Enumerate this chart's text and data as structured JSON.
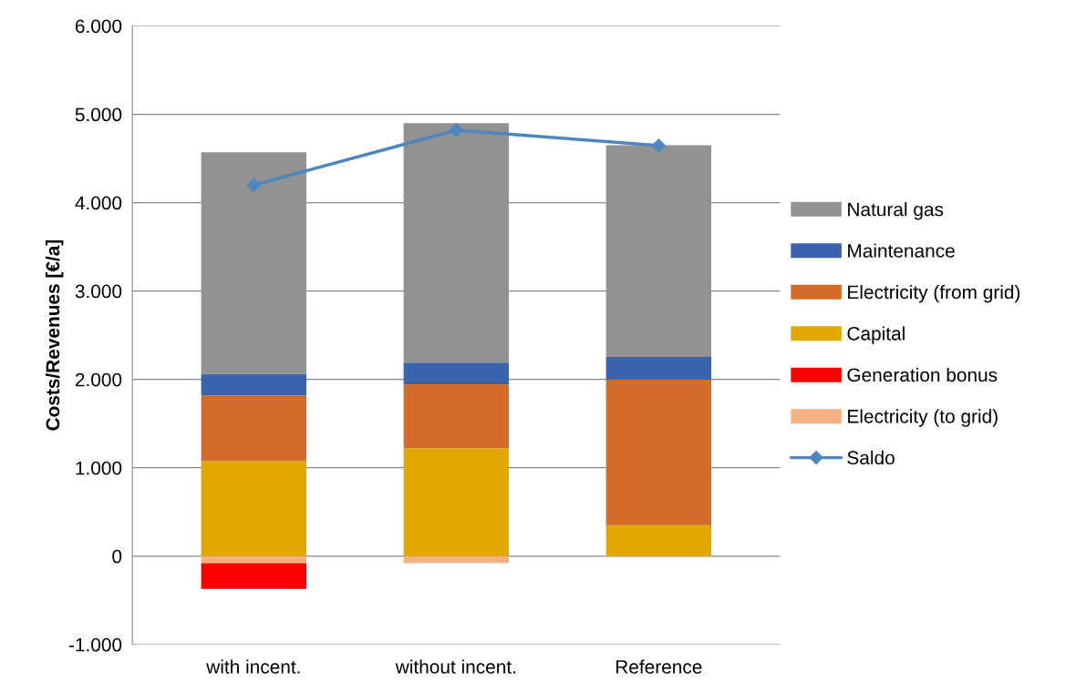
{
  "chart_data": {
    "type": "bar",
    "stacked": true,
    "ylabel": "Costs/Revenues [€/a]",
    "categories": [
      "with incent.",
      "without incent.",
      "Reference"
    ],
    "series": [
      {
        "name": "Electricity (to grid)",
        "color": "#f4b183",
        "values": [
          -80,
          -80,
          0
        ]
      },
      {
        "name": "Generation bonus",
        "color": "#ff0000",
        "values": [
          -290,
          0,
          0
        ]
      },
      {
        "name": "Capital",
        "color": "#e0a800",
        "values": [
          1075,
          1220,
          350
        ]
      },
      {
        "name": "Electricity (from grid)",
        "color": "#d36b2a",
        "values": [
          745,
          725,
          1650
        ]
      },
      {
        "name": "Maintenance",
        "color": "#3a64ad",
        "values": [
          240,
          245,
          255
        ]
      },
      {
        "name": "Natural gas",
        "color": "#929292",
        "values": [
          2510,
          2710,
          2395
        ]
      },
      {
        "name": "Saldo",
        "type": "line",
        "color": "#4f86c0",
        "marker": "diamond",
        "values": [
          4200,
          4820,
          4645
        ]
      }
    ],
    "ylim": [
      -1000,
      6000
    ],
    "yticks": [
      {
        "value": -1000,
        "label": "-1.000"
      },
      0,
      {
        "value": 1000,
        "label": "1.000"
      },
      {
        "value": 2000,
        "label": "2.000"
      },
      {
        "value": 3000,
        "label": "3.000"
      },
      {
        "value": 4000,
        "label": "4.000"
      },
      {
        "value": 5000,
        "label": "5.000"
      },
      {
        "value": 6000,
        "label": "6.000"
      }
    ],
    "grid": "y",
    "legend": "right"
  }
}
